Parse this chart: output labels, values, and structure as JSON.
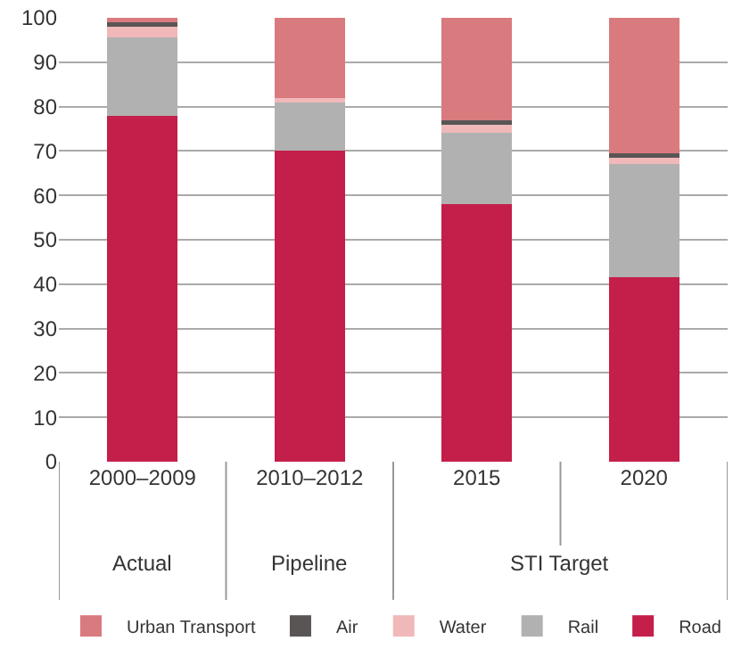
{
  "chart_data": {
    "type": "bar",
    "stacked": true,
    "categories": [
      "2000–2009",
      "2010–2012",
      "2015",
      "2020"
    ],
    "series": [
      {
        "name": "Road",
        "color": "#c41e4a",
        "values": [
          78,
          70,
          58,
          41.5
        ]
      },
      {
        "name": "Rail",
        "color": "#b1b1b1",
        "values": [
          17.5,
          11,
          16,
          25.5
        ]
      },
      {
        "name": "Water",
        "color": "#f0b8b8",
        "values": [
          2.5,
          1,
          2,
          1.5
        ]
      },
      {
        "name": "Air",
        "color": "#5a5555",
        "values": [
          1,
          0,
          1,
          1
        ]
      },
      {
        "name": "Urban Transport",
        "color": "#d97a7e",
        "values": [
          1,
          18,
          23,
          30.5
        ]
      }
    ],
    "annotations": [
      "Actual",
      "Pipeline",
      "STI Target"
    ],
    "ylim": [
      0,
      100
    ],
    "yticks": [
      0,
      10,
      20,
      30,
      40,
      50,
      60,
      70,
      80,
      90,
      100
    ],
    "grid": "y",
    "legend": "bottom"
  }
}
